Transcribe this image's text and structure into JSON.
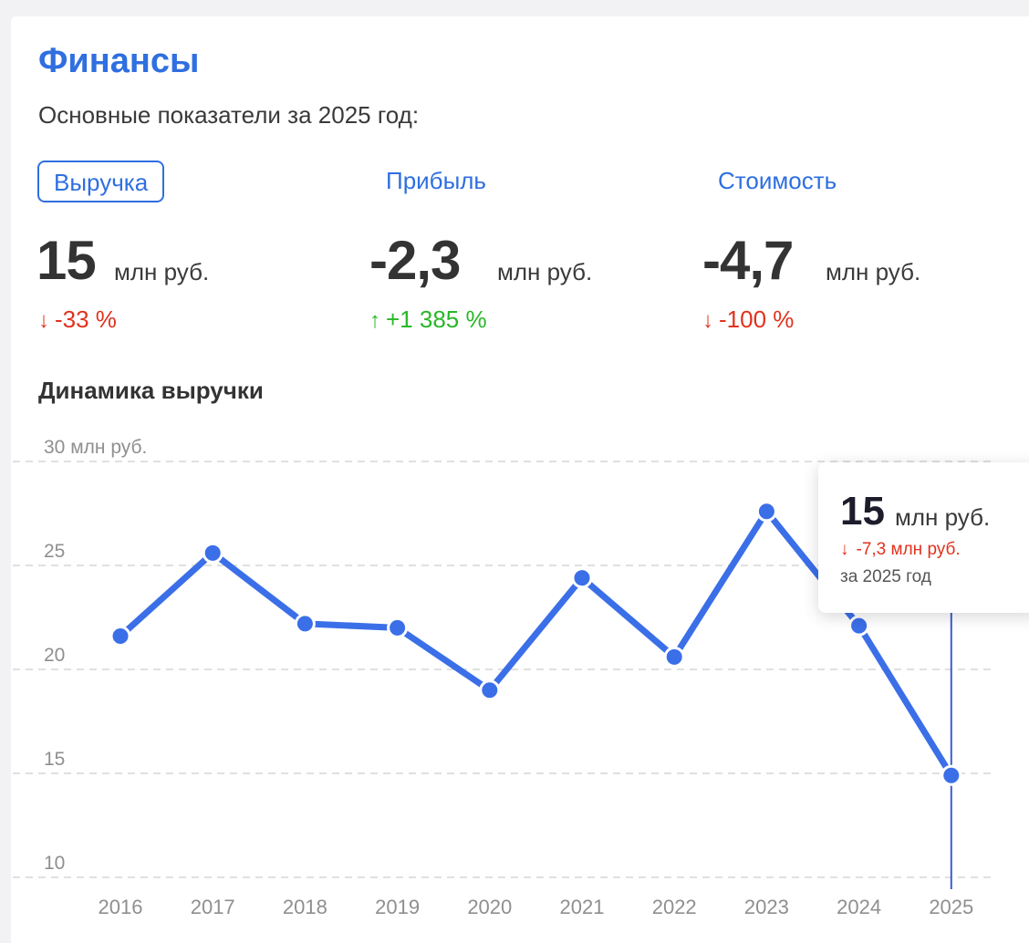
{
  "header": {
    "title": "Финансы",
    "subtitle": "Основные показатели за 2025 год:"
  },
  "tabs": [
    {
      "label": "Выручка",
      "active": true
    },
    {
      "label": "Прибыль",
      "active": false
    },
    {
      "label": "Стоимость",
      "active": false
    }
  ],
  "metrics": [
    {
      "value": "15",
      "unit": "млн руб.",
      "change": "-33 %",
      "direction": "down",
      "arrow": "↓"
    },
    {
      "value": "-2,3",
      "unit": "млн руб.",
      "change": "+1 385 %",
      "direction": "up",
      "arrow": "↑"
    },
    {
      "value": "-4,7",
      "unit": "млн руб.",
      "change": "-100 %",
      "direction": "down",
      "arrow": "↓"
    }
  ],
  "chart_section": {
    "title": "Динамика выручки"
  },
  "tooltip": {
    "value": "15",
    "unit": "млн руб.",
    "change": "-7,3 млн руб.",
    "arrow": "↓",
    "period": "за 2025 год"
  },
  "colors": {
    "accent": "#2f6fe0",
    "line": "#3b6fe8",
    "negative": "#e0321e",
    "positive": "#28b827"
  },
  "chart_data": {
    "type": "line",
    "x": [
      "2016",
      "2017",
      "2018",
      "2019",
      "2020",
      "2021",
      "2022",
      "2023",
      "2024",
      "2025"
    ],
    "series": [
      {
        "values": [
          21.6,
          25.6,
          22.2,
          22.0,
          19.0,
          24.4,
          20.6,
          27.6,
          22.1,
          14.9
        ]
      }
    ],
    "y_ticks": [
      {
        "value": 30,
        "label": "30 млн руб."
      },
      {
        "value": 25,
        "label": "25"
      },
      {
        "value": 20,
        "label": "20"
      },
      {
        "value": 15,
        "label": "15"
      },
      {
        "value": 10,
        "label": "10"
      }
    ],
    "ylim": [
      10,
      30
    ],
    "highlighted_x": "2025",
    "grid": true
  }
}
